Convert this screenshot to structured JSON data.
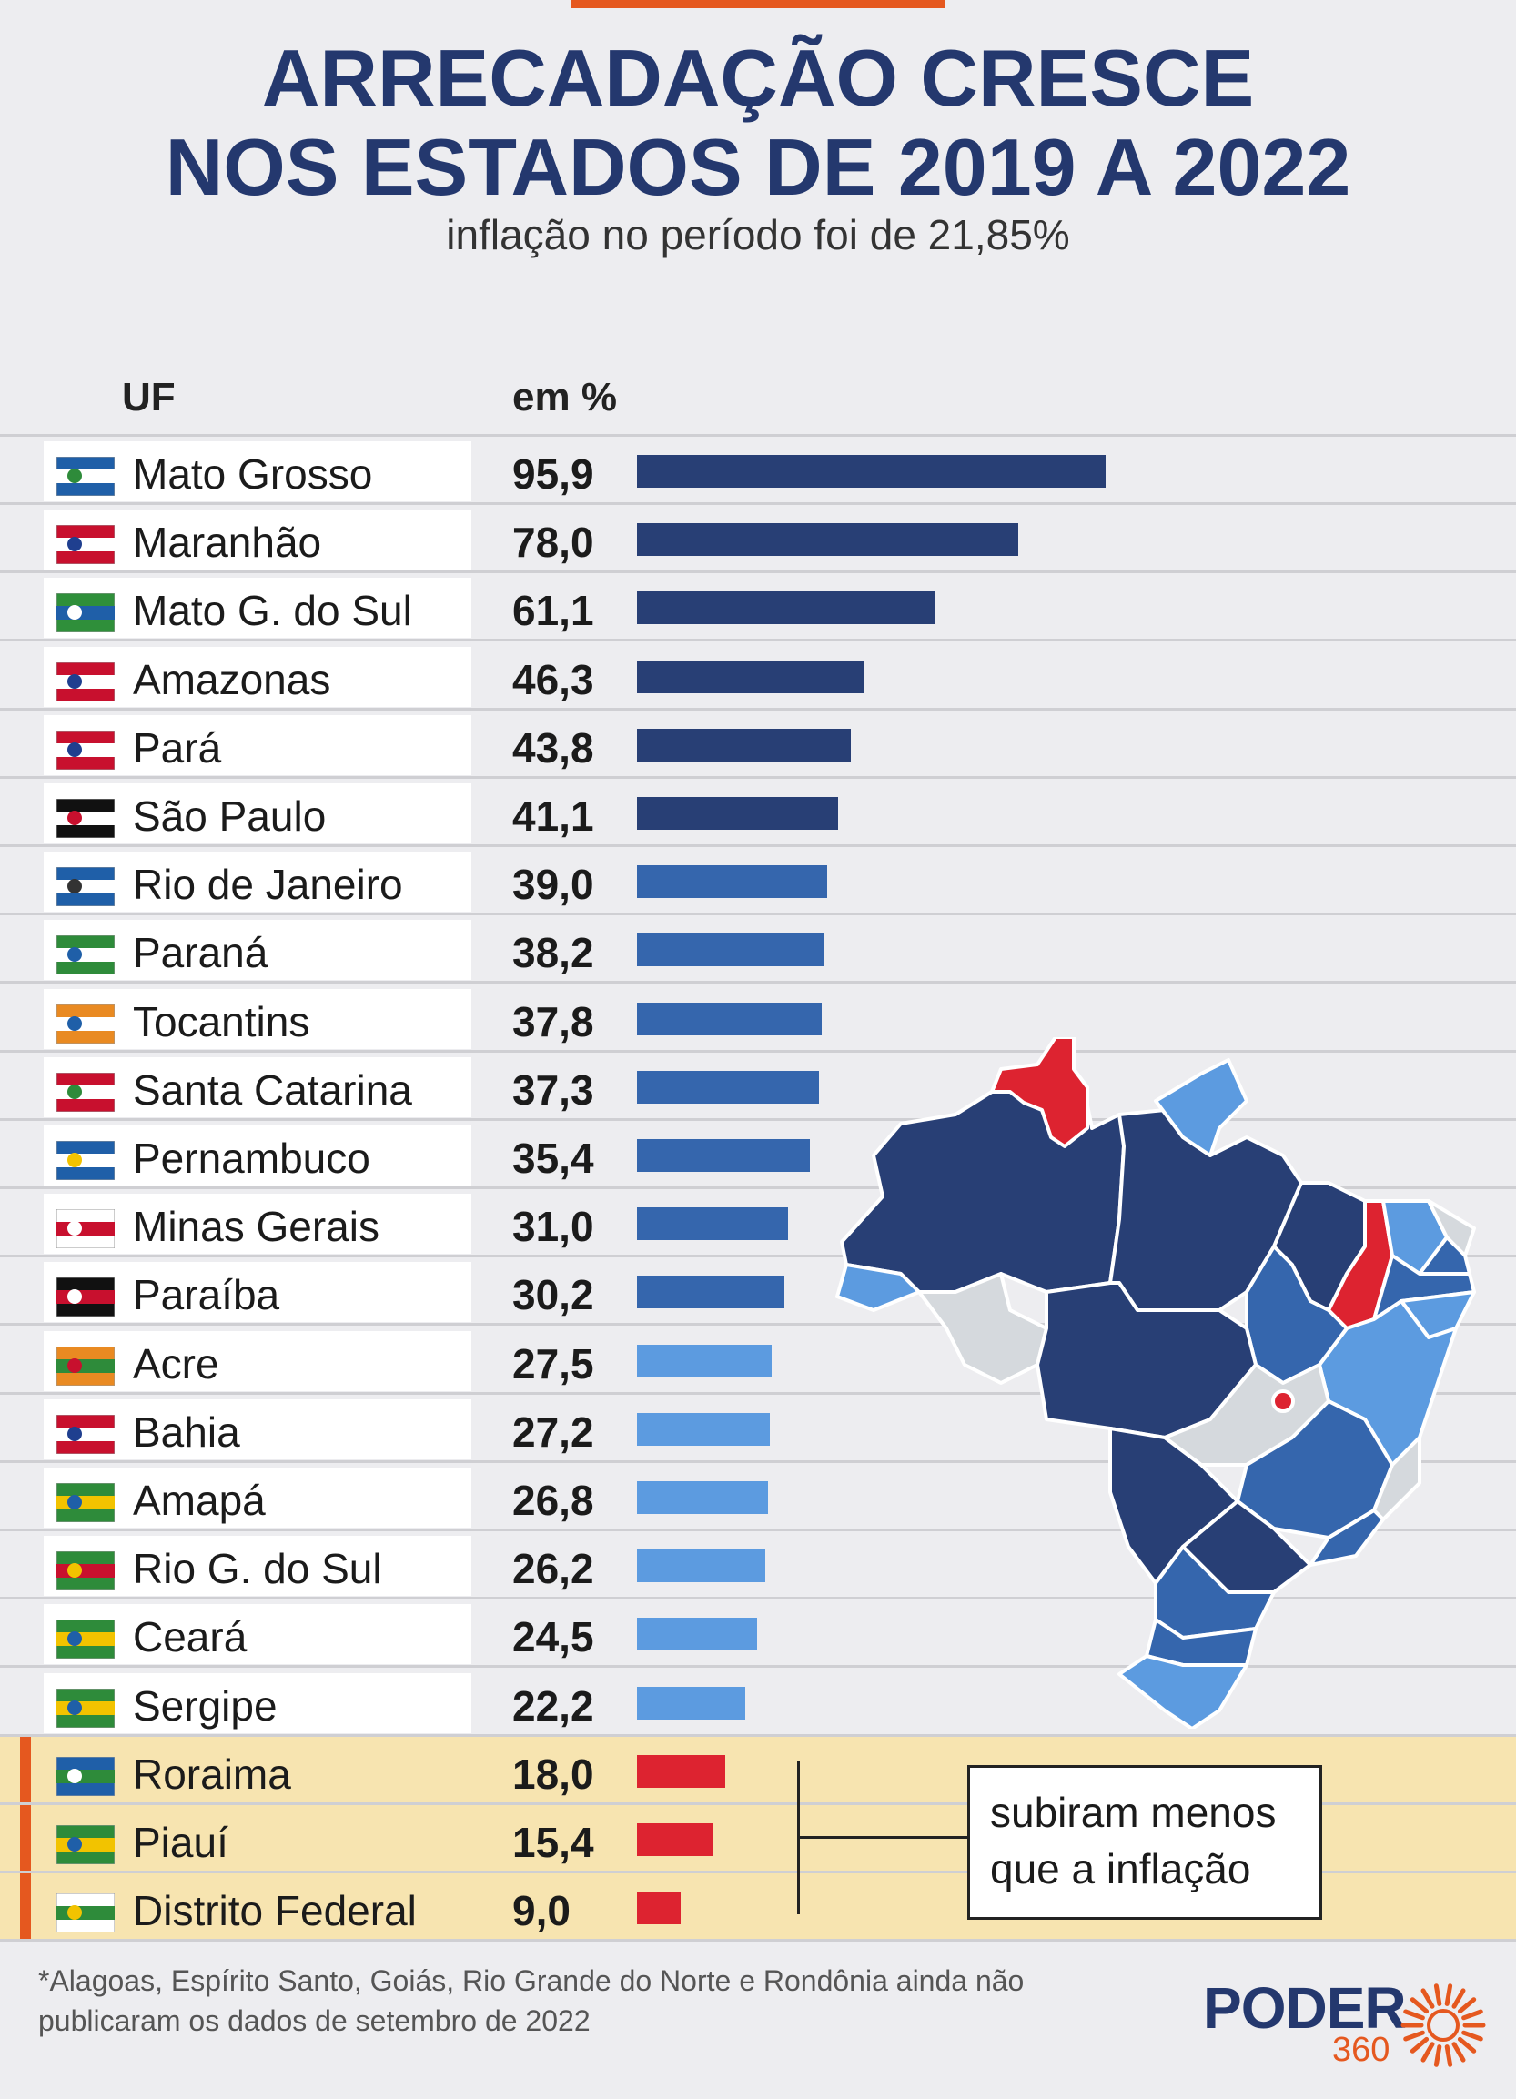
{
  "title_line1": "ARRECADAÇÃO CRESCE",
  "title_line2": "NOS ESTADOS DE 2019 A 2022",
  "subtitle": "inflação no período foi de 21,85%",
  "col_uf": "UF",
  "col_pct": "em %",
  "callout_line1": "subiram menos",
  "callout_line2": "que a inflação",
  "footnote_line1": "*Alagoas, Espírito Santo, Goiás, Rio Grande do Norte e Rondônia ainda não",
  "footnote_line2": "publicaram os dados de setembro de 2022",
  "logo_main": "PODER",
  "logo_sub": "360",
  "colors": {
    "dark": "#283f75",
    "medium": "#3566ad",
    "light": "#5c9be0",
    "red": "#dd2330",
    "orange": "#e5581f",
    "highlight": "#f7e4b0"
  },
  "chart_data": {
    "type": "bar",
    "orientation": "horizontal",
    "title": "ARRECADAÇÃO CRESCE NOS ESTADOS DE 2019 A 2022",
    "subtitle": "inflação no período foi de 21,85%",
    "xlabel": "em %",
    "ylabel": "UF",
    "xlim": [
      0,
      100
    ],
    "grid": false,
    "categories": [
      "Mato Grosso",
      "Maranhão",
      "Mato G. do Sul",
      "Amazonas",
      "Pará",
      "São Paulo",
      "Rio de Janeiro",
      "Paraná",
      "Tocantins",
      "Santa Catarina",
      "Pernambuco",
      "Minas Gerais",
      "Paraíba",
      "Acre",
      "Bahia",
      "Amapá",
      "Rio G. do Sul",
      "Ceará",
      "Sergipe",
      "Roraima",
      "Piauí",
      "Distrito Federal"
    ],
    "labels": [
      "95,9",
      "78,0",
      "61,1",
      "46,3",
      "43,8",
      "41,1",
      "39,0",
      "38,2",
      "37,8",
      "37,3",
      "35,4",
      "31,0",
      "30,2",
      "27,5",
      "27,2",
      "26,8",
      "26,2",
      "24,5",
      "22,2",
      "18,0",
      "15,4",
      "9,0"
    ],
    "values": [
      95.9,
      78.0,
      61.1,
      46.3,
      43.8,
      41.1,
      39.0,
      38.2,
      37.8,
      37.3,
      35.4,
      31.0,
      30.2,
      27.5,
      27.2,
      26.8,
      26.2,
      24.5,
      22.2,
      18.0,
      15.4,
      9.0
    ],
    "groups": [
      "dark",
      "dark",
      "dark",
      "dark",
      "dark",
      "dark",
      "medium",
      "medium",
      "medium",
      "medium",
      "medium",
      "medium",
      "medium",
      "light",
      "light",
      "light",
      "light",
      "light",
      "light",
      "red",
      "red",
      "red"
    ]
  }
}
